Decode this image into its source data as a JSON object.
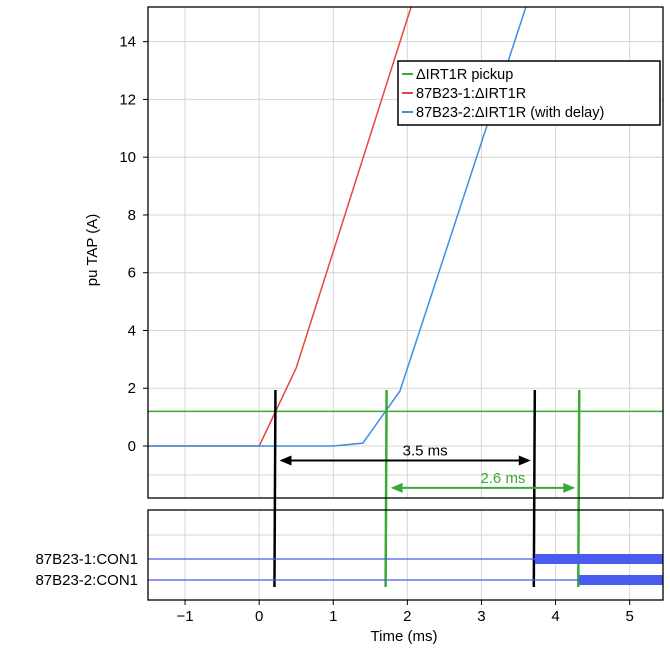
{
  "chart_data": {
    "type": "line",
    "xlabel": "Time (ms)",
    "ylabel": "pu TAP (A)",
    "xlim": [
      -1.5,
      5.45
    ],
    "ylim": [
      -1.8,
      15.2
    ],
    "x_ticks": [
      -1,
      0,
      1,
      2,
      3,
      4,
      5
    ],
    "x_tick_labels": [
      "−1",
      "0",
      "1",
      "2",
      "3",
      "4",
      "5"
    ],
    "y_ticks": [
      0,
      2,
      4,
      6,
      8,
      10,
      12,
      14
    ],
    "y_tick_labels": [
      "0",
      "2",
      "4",
      "6",
      "8",
      "10",
      "12",
      "14"
    ],
    "legend_position": "top-right",
    "colors": {
      "red": "#e8453c",
      "blue": "#3d8fe0",
      "green": "#3aaa35",
      "black": "#000000",
      "digital": "#4a5cf0"
    },
    "series": [
      {
        "name": "ΔIRT1R pickup",
        "color": "#3aaa35",
        "x": [
          -1.5,
          5.45
        ],
        "y": [
          1.2,
          1.2
        ]
      },
      {
        "name": "87B23-1:ΔIRT1R",
        "color": "#e8453c",
        "x": [
          -1.5,
          0.0,
          0.5,
          2.05
        ],
        "y": [
          0.0,
          0.0,
          2.7,
          15.2
        ]
      },
      {
        "name": "87B23-2:ΔIRT1R (with delay)",
        "color": "#3d8fe0",
        "x": [
          -1.5,
          1.0,
          1.4,
          1.9,
          3.6
        ],
        "y": [
          0.0,
          0.0,
          0.1,
          1.9,
          15.2
        ]
      }
    ],
    "markers": [
      {
        "x": 0.22,
        "color": "#000000"
      },
      {
        "x": 1.72,
        "color": "#3aaa35"
      },
      {
        "x": 3.72,
        "color": "#000000"
      },
      {
        "x": 4.32,
        "color": "#3aaa35"
      }
    ],
    "annotations": [
      {
        "text": "3.5 ms",
        "x1": 0.22,
        "x2": 3.72,
        "y": -0.5,
        "color": "#000000"
      },
      {
        "text": "2.6 ms",
        "x1": 1.72,
        "x2": 4.32,
        "y": -1.45,
        "color": "#3aaa35"
      }
    ],
    "digital_channels": [
      {
        "label": "87B23-1:CON1",
        "assert_x": 3.72
      },
      {
        "label": "87B23-2:CON1",
        "assert_x": 4.32
      }
    ]
  }
}
